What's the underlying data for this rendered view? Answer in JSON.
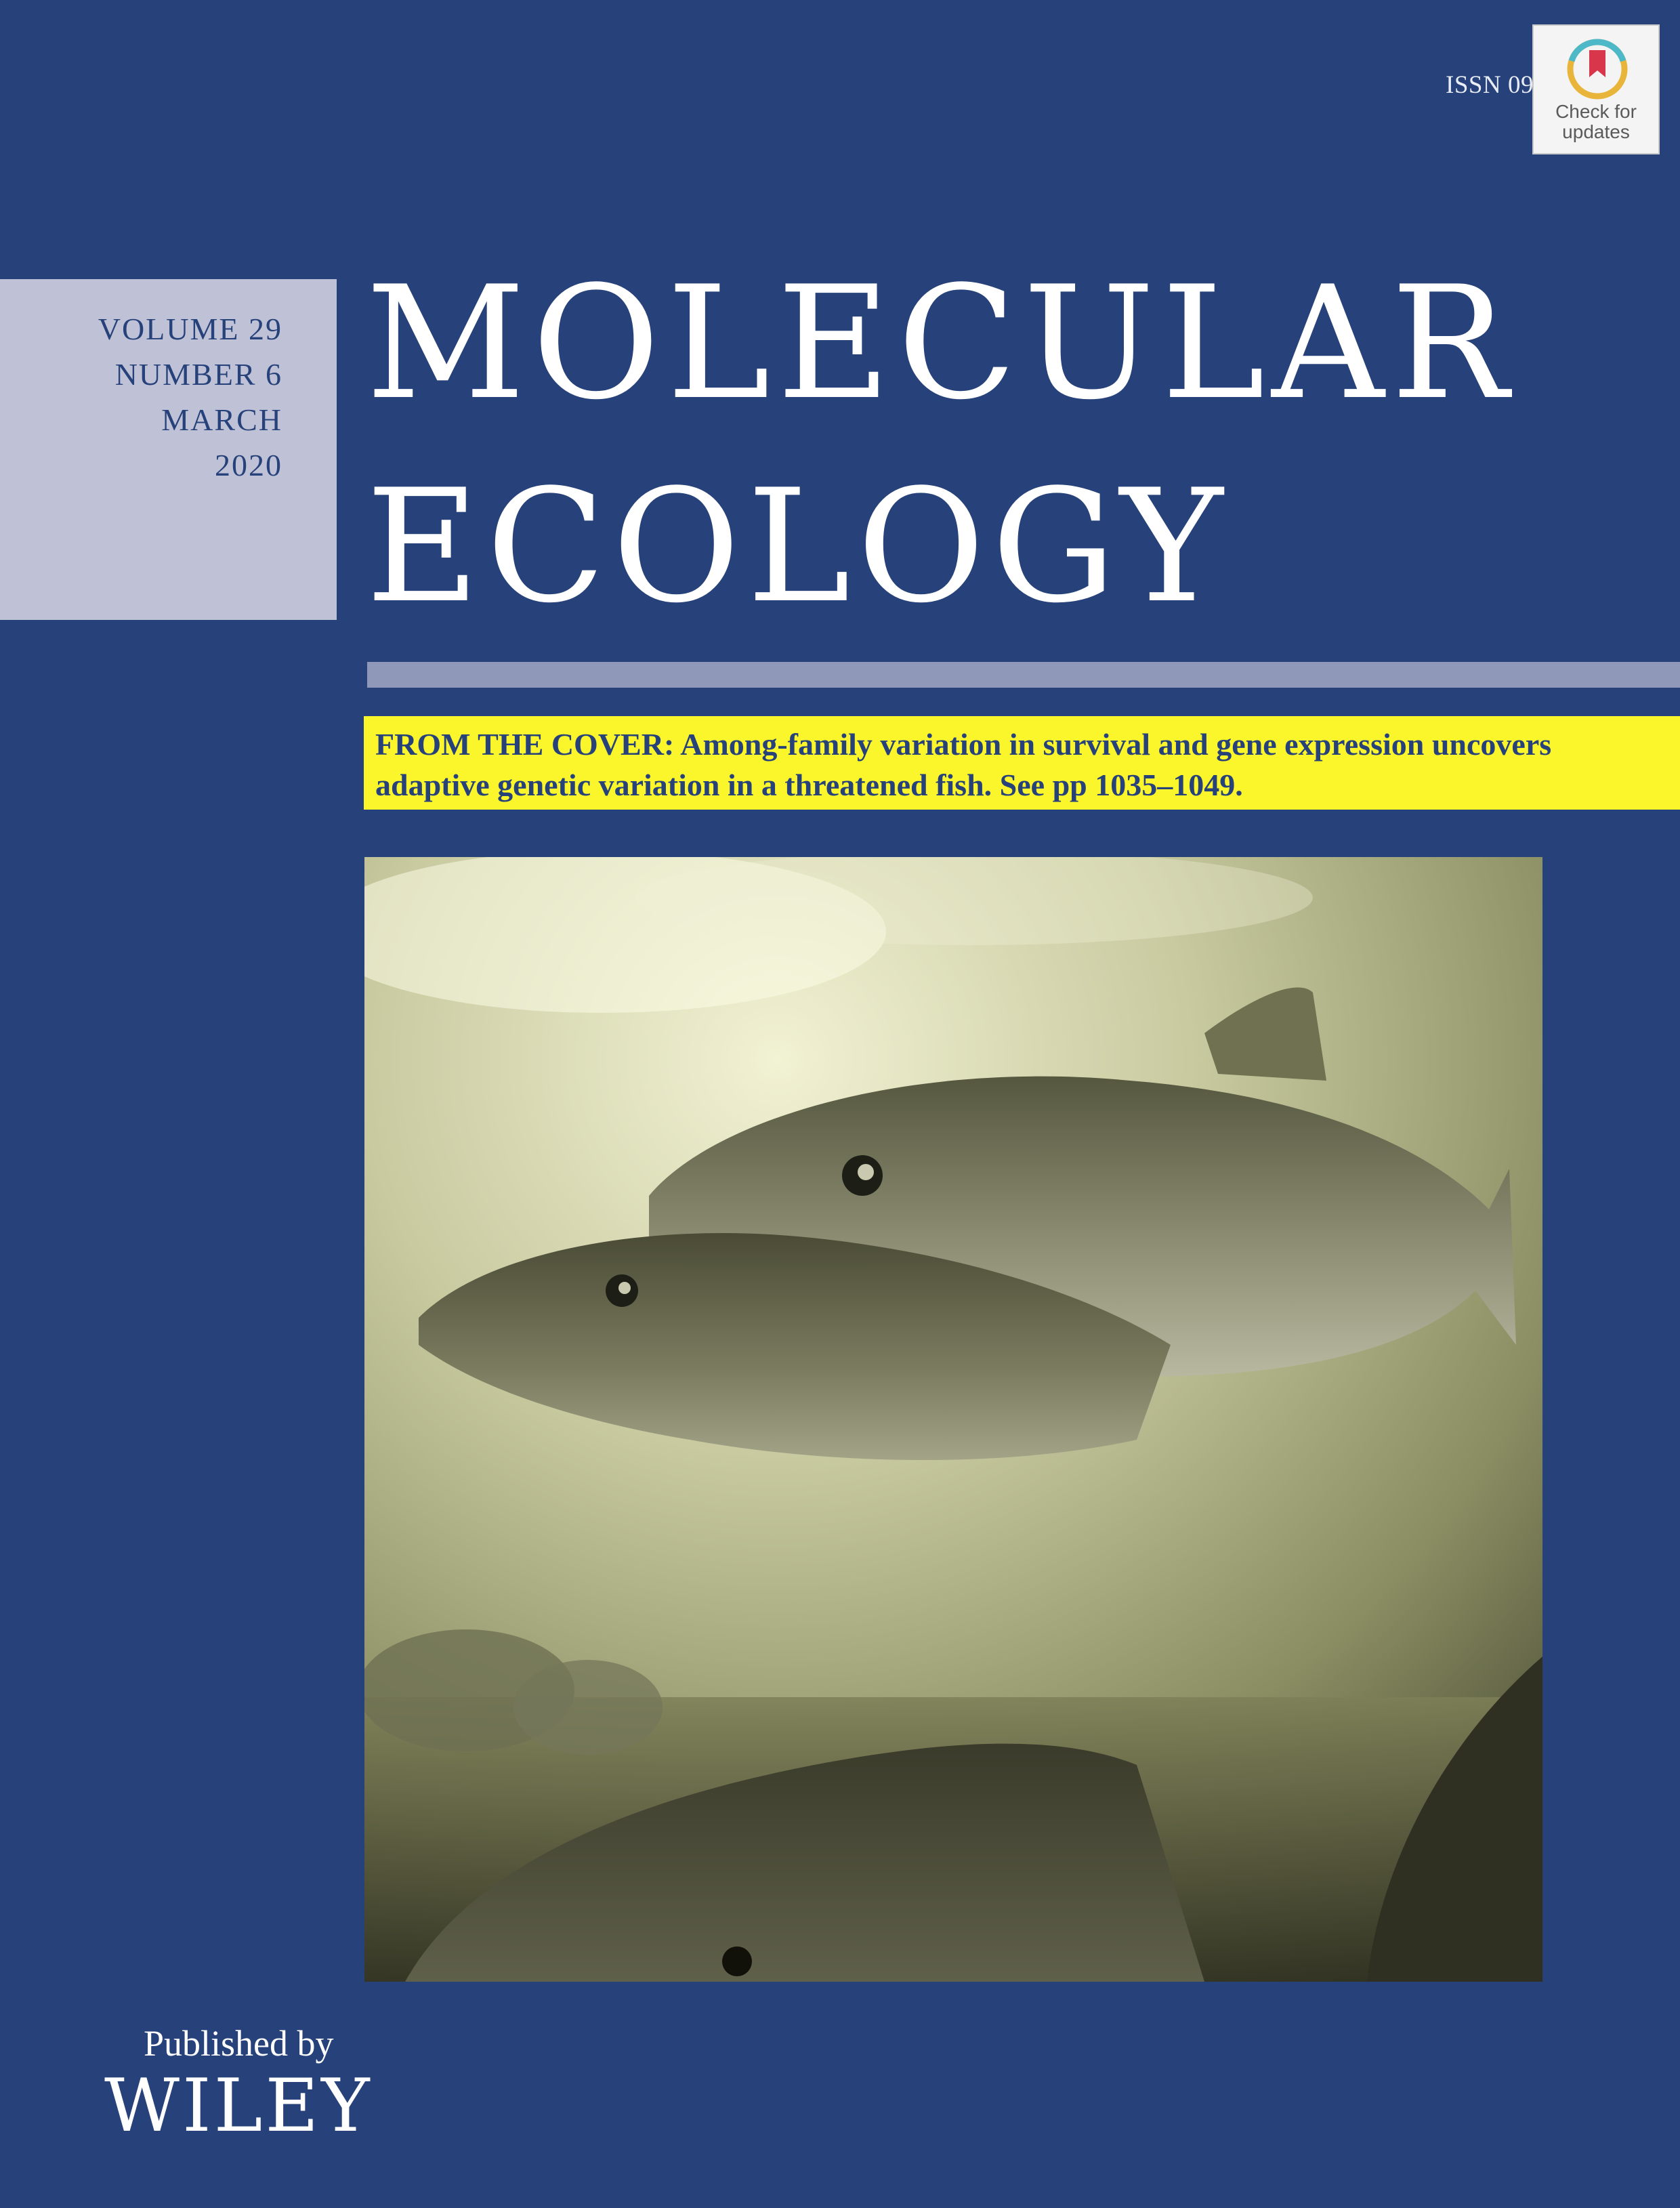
{
  "header": {
    "issn": "ISSN 09",
    "check_for_updates": {
      "line1": "Check for",
      "line2": "updates"
    }
  },
  "issue": {
    "volume": "VOLUME 29",
    "number": "NUMBER 6",
    "month": "MARCH",
    "year": "2020"
  },
  "journal": {
    "title_line1": "MOLECULAR",
    "title_line2": "ECOLOGY"
  },
  "cover_story": {
    "label": "FROM THE COVER:",
    "text": " Among-family variation in survival and gene expression uncovers adaptive genetic variation in a threatened fish. See pp 1035–1049."
  },
  "photo": {
    "icon": "salmon-underwater-photo"
  },
  "publisher": {
    "published_by": "Published by",
    "name": "WILEY"
  },
  "colors": {
    "background": "#27427a",
    "volume_box": "#bfc2d6",
    "rule": "#8f98b9",
    "highlight": "#fbf52c"
  }
}
